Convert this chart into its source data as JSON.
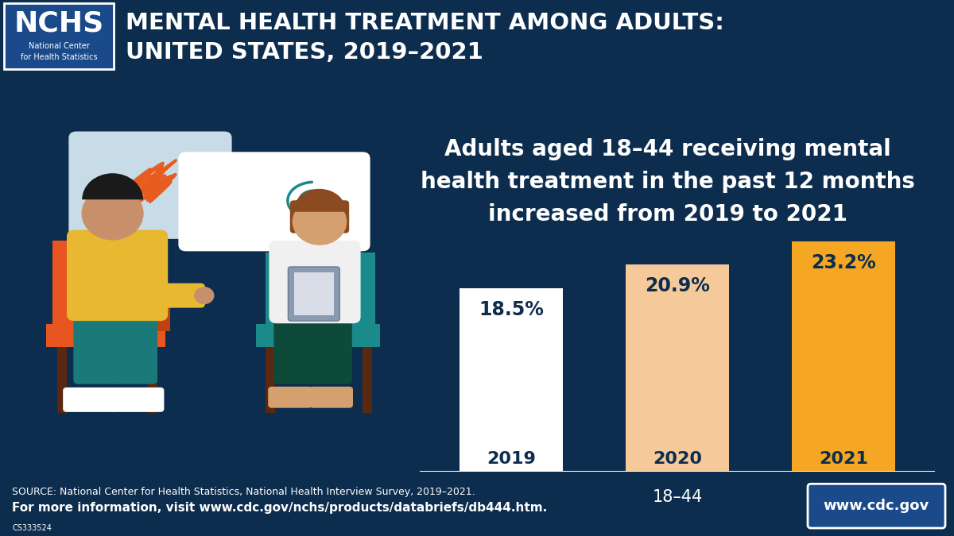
{
  "title_line1": "MENTAL HEALTH TREATMENT AMONG ADULTS:",
  "title_line2": "UNITED STATES, 2019–2021",
  "header_bg": "#1a7a5e",
  "main_bg": "#0d2d4e",
  "footer_bg": "#1a7a5e",
  "nchs_box_bg": "#1a4a8a",
  "nchs_text": "NCHS",
  "nchs_subtext": "National Center\nfor Health Statistics",
  "highlight_text": "Adults aged 18–44 receiving mental\nhealth treatment in the past 12 months\nincreased from 2019 to 2021",
  "highlight_text_color": "#ffffff",
  "years": [
    "2019",
    "2020",
    "2021"
  ],
  "values": [
    18.5,
    20.9,
    23.2
  ],
  "bar_colors": [
    "#ffffff",
    "#f5c99a",
    "#f5a623"
  ],
  "bar_label_color": "#0d2d4e",
  "age_group_label": "18–44",
  "age_group_color": "#ffffff",
  "source_line1": "SOURCE: National Center for Health Statistics, National Health Interview Survey, 2019–2021.",
  "source_line2": "For more information, visit www.cdc.gov/nchs/products/databriefs/db444.htm.",
  "source_small": "CS333524",
  "cdc_url": "www.cdc.gov",
  "cdc_url_bg": "#1a4a8a",
  "footer_text_color": "#ffffff",
  "title_text_color": "#ffffff",
  "bubble1_color": "#c8dce8",
  "bubble2_color": "#ffffff",
  "orange_scribble": "#e85c20",
  "teal_swirl": "#1a8a8a",
  "patient_shirt": "#e8b830",
  "patient_pants": "#1a7a7a",
  "patient_skin": "#c8906a",
  "patient_hair": "#1a1a1a",
  "patient_shoes": "#e8e8e8",
  "chair1_color": "#e85520",
  "chair2_color": "#1a8a8a",
  "therapist_shirt": "#f0f0f0",
  "therapist_hair": "#8b4a20",
  "therapist_skin": "#d4a070"
}
